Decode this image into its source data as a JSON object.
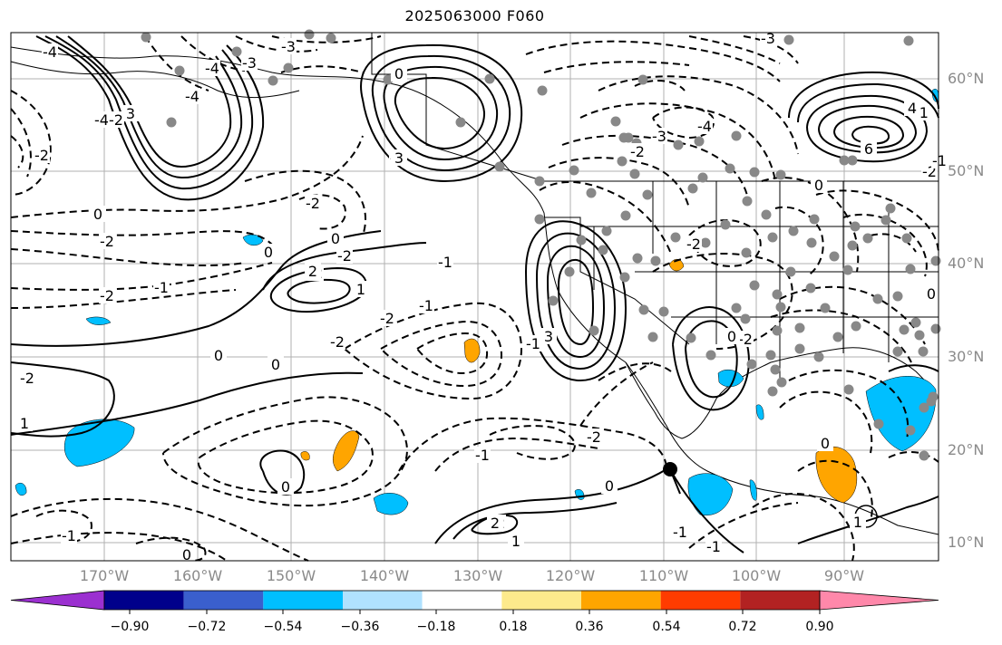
{
  "title": "2025063000 F060",
  "lat_labels": [
    "60°N",
    "50°N",
    "40°N",
    "30°N",
    "20°N",
    "10°N"
  ],
  "lon_labels": [
    "170°W",
    "160°W",
    "150°W",
    "140°W",
    "130°W",
    "120°W",
    "110°W",
    "100°W",
    "90°W"
  ],
  "contour_labels": [
    "-4",
    "-3",
    "-2",
    "-1",
    "0",
    "1",
    "2",
    "3",
    "4",
    "6"
  ],
  "colorbar": {
    "ticks": [
      "−0.90",
      "−0.72",
      "−0.54",
      "−0.36",
      "−0.18",
      "0.18",
      "0.36",
      "0.54",
      "0.72",
      "0.90"
    ],
    "colors": [
      "#9b30d0",
      "#00008b",
      "#3a5fcd",
      "#00bfff",
      "#b0e2ff",
      "#ffffff",
      "#fdea8c",
      "#ffa500",
      "#ff3c00",
      "#b22222",
      "#ff88aa"
    ]
  },
  "colors": {
    "grid": "#b0b0b0",
    "axis_label": "#8a8a8a",
    "station": "#888888",
    "negative_shade": "#00bfff",
    "positive_shade": "#ffa500"
  }
}
